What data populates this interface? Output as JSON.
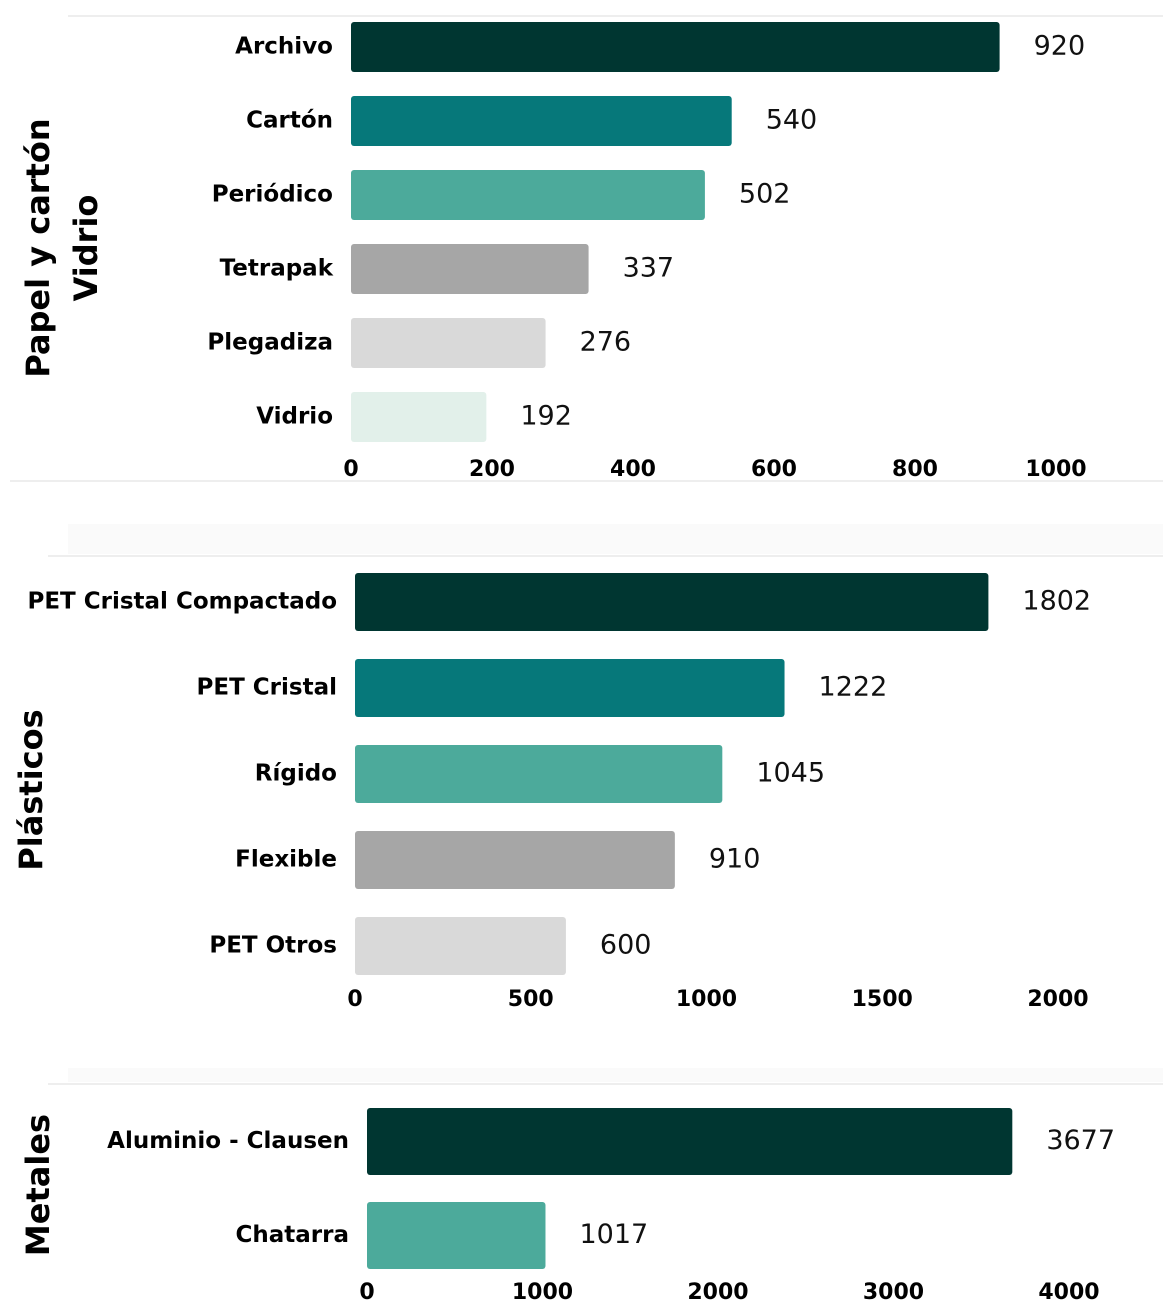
{
  "chart_data": [
    {
      "type": "bar",
      "orientation": "horizontal",
      "ylabel": [
        "Papel y cartón",
        "Vidrio"
      ],
      "categories": [
        "Archivo",
        "Cartón",
        "Periódico",
        "Tetrapak",
        "Plegadiza",
        "Vidrio"
      ],
      "values": [
        920,
        540,
        502,
        337,
        276,
        192
      ],
      "colors": [
        "#003631",
        "#06787a",
        "#4caa9b",
        "#a6a6a6",
        "#d9d9d9",
        "#e2f0ea"
      ],
      "xlim": [
        0,
        1000
      ],
      "xticks": [
        0,
        200,
        400,
        600,
        800,
        1000
      ]
    },
    {
      "type": "bar",
      "orientation": "horizontal",
      "ylabel": [
        "Plásticos"
      ],
      "categories": [
        "PET Cristal Compactado",
        "PET Cristal",
        "Rígido",
        "Flexible",
        "PET Otros"
      ],
      "values": [
        1802,
        1222,
        1045,
        910,
        600
      ],
      "colors": [
        "#003631",
        "#06787a",
        "#4caa9b",
        "#a6a6a6",
        "#d9d9d9"
      ],
      "xlim": [
        0,
        2000
      ],
      "xticks": [
        0,
        500,
        1000,
        1500,
        2000
      ]
    },
    {
      "type": "bar",
      "orientation": "horizontal",
      "ylabel": [
        "Metales"
      ],
      "categories": [
        "Aluminio - Clausen",
        "Chatarra"
      ],
      "values": [
        3677,
        1017
      ],
      "colors": [
        "#003631",
        "#4caa9b"
      ],
      "xlim": [
        0,
        4000
      ],
      "xticks": [
        0,
        1000,
        2000,
        3000,
        4000
      ]
    }
  ]
}
